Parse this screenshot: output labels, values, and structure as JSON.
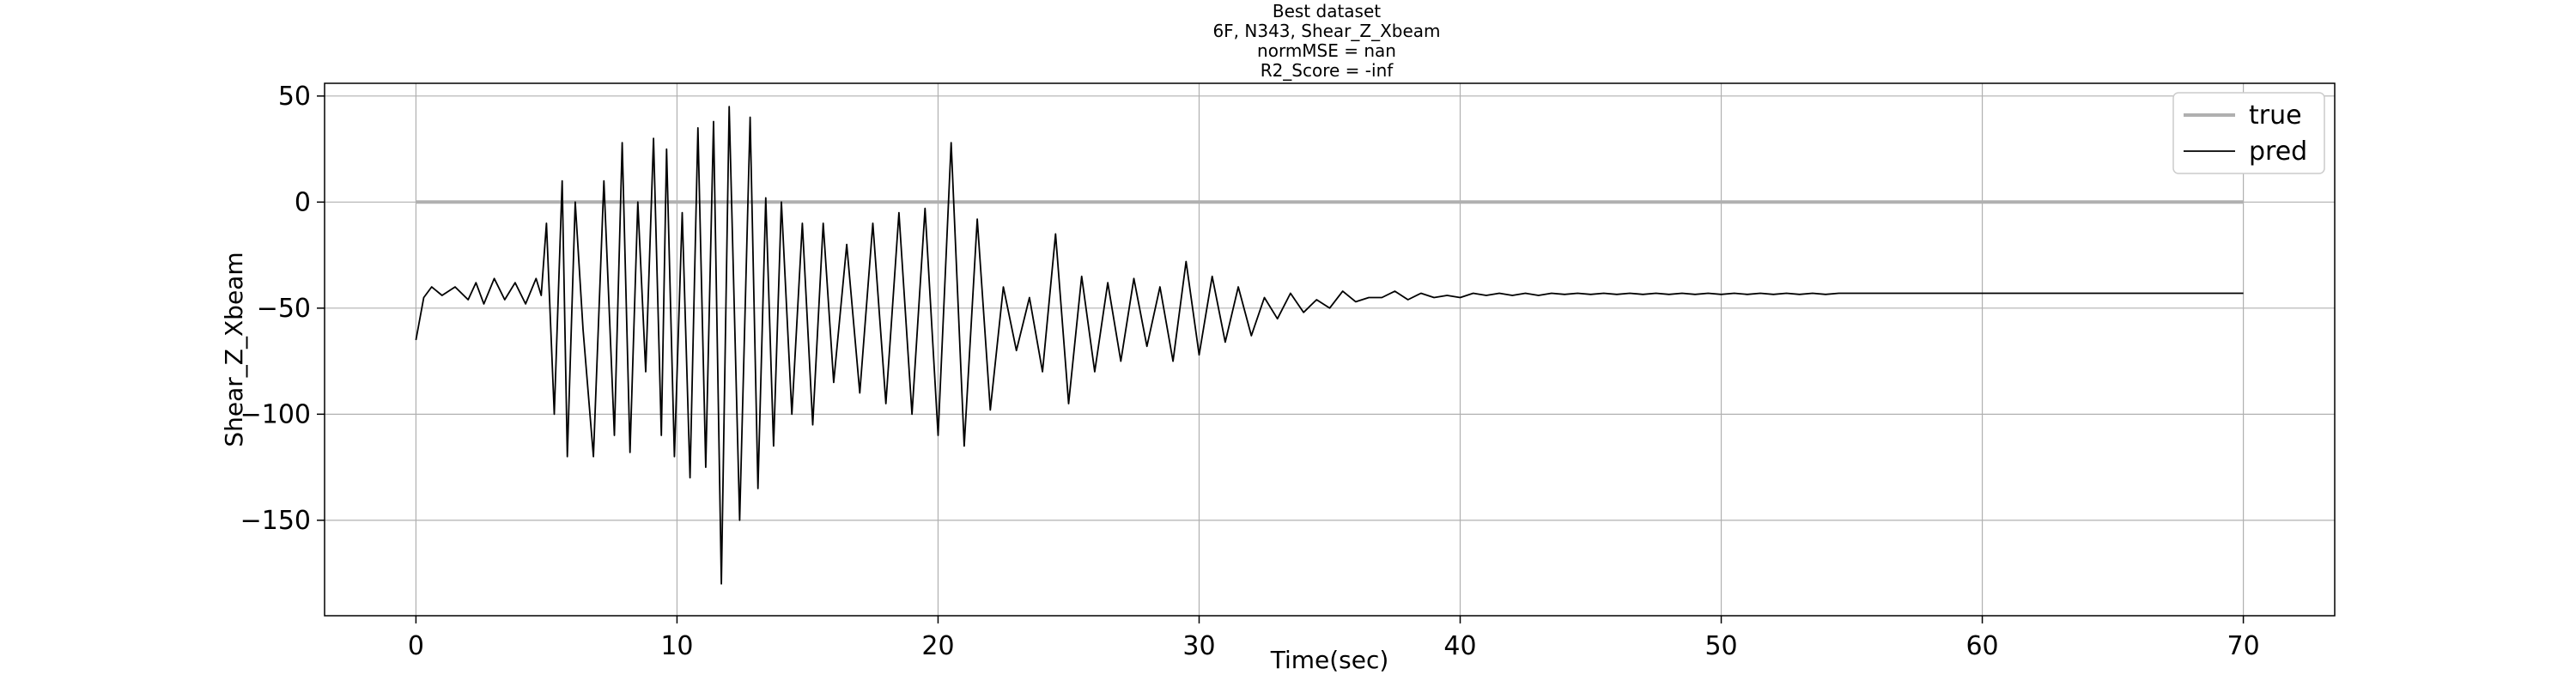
{
  "chart_data": {
    "type": "line",
    "title": [
      "Best dataset",
      "6F, N343, Shear_Z_Xbeam",
      "normMSE = nan",
      "R2_Score = -inf"
    ],
    "xlabel": "Time(sec)",
    "ylabel": "Shear_Z_Xbeam",
    "xlim": [
      -3.5,
      73.5
    ],
    "ylim": [
      -195,
      56
    ],
    "xticks": [
      0,
      10,
      20,
      30,
      40,
      50,
      60,
      70
    ],
    "yticks": [
      50,
      0,
      -50,
      -100,
      -150
    ],
    "xtick_labels": [
      "0",
      "10",
      "20",
      "30",
      "40",
      "50",
      "60",
      "70"
    ],
    "ytick_labels": [
      "50",
      "0",
      "−50",
      "−100",
      "−150"
    ],
    "grid": true,
    "legend_position": "top-right",
    "series": [
      {
        "name": "true",
        "color": "#b0b0b0",
        "x": [
          0,
          70
        ],
        "y": [
          0,
          0
        ]
      },
      {
        "name": "pred",
        "color": "#000000",
        "x": [
          0,
          0.3,
          0.6,
          1.0,
          1.5,
          2.0,
          2.3,
          2.6,
          3.0,
          3.4,
          3.8,
          4.2,
          4.6,
          4.8,
          5.0,
          5.3,
          5.6,
          5.8,
          6.1,
          6.4,
          6.8,
          7.2,
          7.6,
          7.9,
          8.2,
          8.5,
          8.8,
          9.1,
          9.4,
          9.6,
          9.9,
          10.2,
          10.5,
          10.8,
          11.1,
          11.4,
          11.7,
          12.0,
          12.4,
          12.8,
          13.1,
          13.4,
          13.7,
          14.0,
          14.4,
          14.8,
          15.2,
          15.6,
          16.0,
          16.5,
          17.0,
          17.5,
          18.0,
          18.5,
          19.0,
          19.5,
          20.0,
          20.5,
          21.0,
          21.5,
          22.0,
          22.5,
          23.0,
          23.5,
          24.0,
          24.5,
          25.0,
          25.5,
          26.0,
          26.5,
          27.0,
          27.5,
          28.0,
          28.5,
          29.0,
          29.5,
          30.0,
          30.5,
          31.0,
          31.5,
          32.0,
          32.5,
          33.0,
          33.5,
          34.0,
          34.5,
          35.0,
          35.5,
          36.0,
          36.5,
          37.0,
          37.5,
          38.0,
          38.5,
          39.0,
          39.5,
          40.0,
          40.5,
          41.0,
          41.5,
          42.0,
          42.5,
          43.0,
          43.5,
          44.0,
          44.5,
          45.0,
          45.5,
          46.0,
          46.5,
          47.0,
          47.5,
          48.0,
          48.5,
          49.0,
          49.5,
          50.0,
          50.5,
          51.0,
          51.5,
          52.0,
          52.5,
          53.0,
          53.5,
          54.0,
          54.5,
          55.0,
          56.0,
          57.0,
          58.0,
          60.0,
          62.0,
          65.0,
          70.0
        ],
        "y": [
          -65,
          -45,
          -40,
          -44,
          -40,
          -46,
          -38,
          -48,
          -36,
          -46,
          -38,
          -48,
          -36,
          -44,
          -10,
          -100,
          10,
          -120,
          0,
          -60,
          -120,
          10,
          -110,
          28,
          -118,
          0,
          -80,
          30,
          -110,
          25,
          -120,
          -5,
          -130,
          35,
          -125,
          38,
          -180,
          45,
          -150,
          40,
          -135,
          2,
          -115,
          0,
          -100,
          -10,
          -105,
          -10,
          -85,
          -20,
          -90,
          -10,
          -95,
          -5,
          -100,
          -3,
          -110,
          28,
          -115,
          -8,
          -98,
          -40,
          -70,
          -45,
          -80,
          -15,
          -95,
          -35,
          -80,
          -38,
          -75,
          -36,
          -68,
          -40,
          -75,
          -28,
          -72,
          -35,
          -66,
          -40,
          -63,
          -45,
          -55,
          -43,
          -52,
          -46,
          -50,
          -42,
          -47,
          -45,
          -45,
          -42,
          -46,
          -43,
          -45,
          -44,
          -45,
          -43,
          -44,
          -43,
          -44,
          -43,
          -44,
          -43,
          -43.5,
          -43,
          -43.5,
          -43,
          -43.5,
          -43,
          -43.5,
          -43,
          -43.5,
          -43,
          -43.5,
          -43,
          -43.5,
          -43,
          -43.5,
          -43,
          -43.5,
          -43,
          -43.5,
          -43,
          -43.5,
          -43,
          -43,
          -43,
          -43,
          -43,
          -43,
          -43,
          -43,
          -43
        ]
      }
    ]
  }
}
